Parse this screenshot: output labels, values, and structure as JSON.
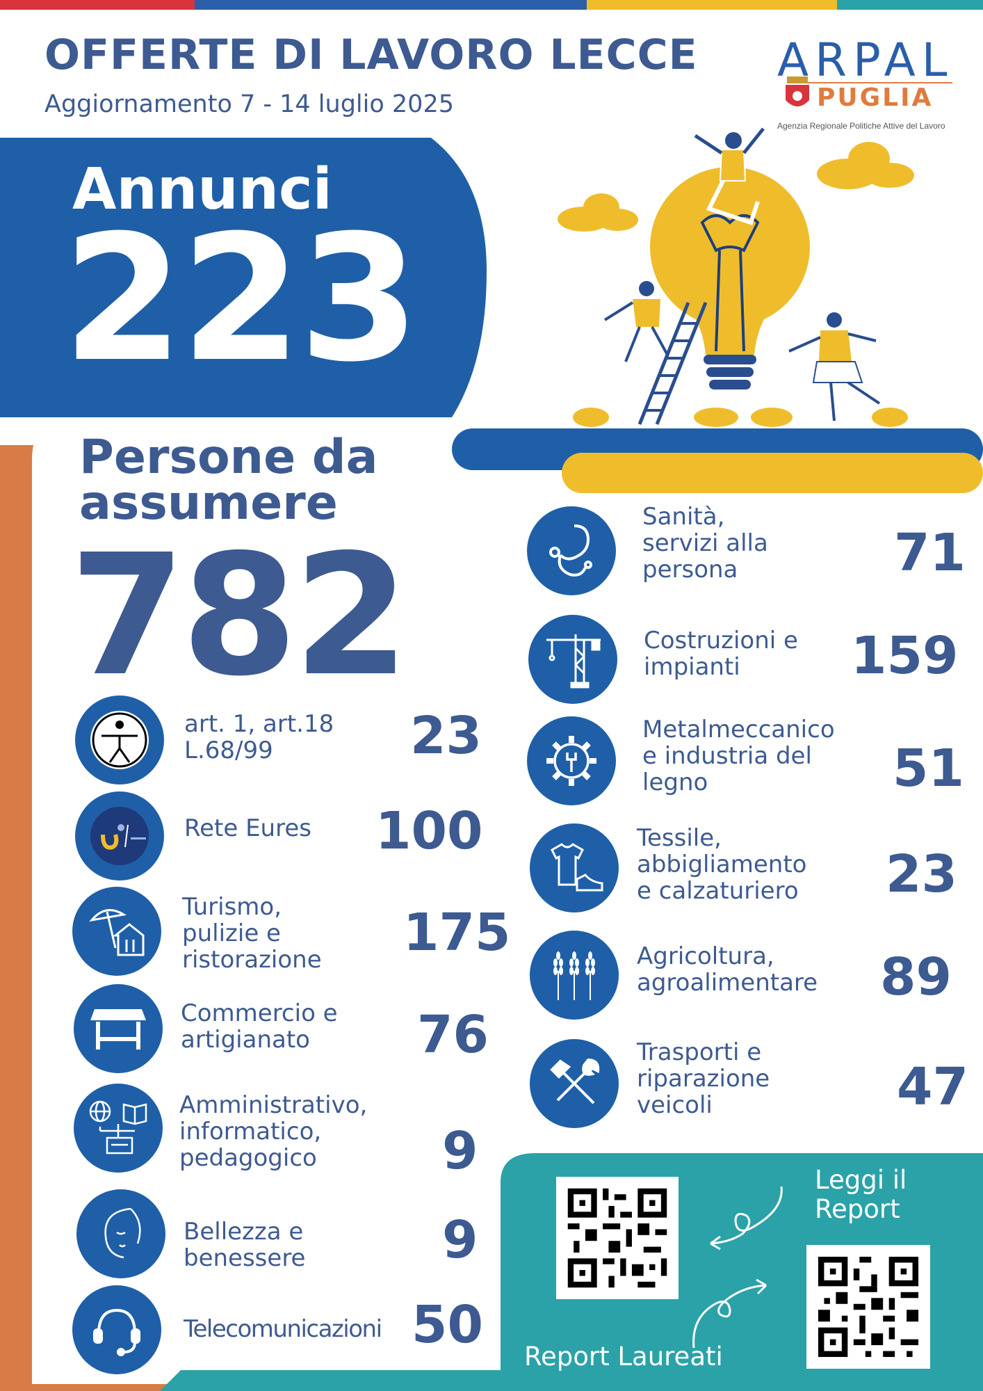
{
  "header": {
    "title": "OFFERTE DI LAVORO LECCE",
    "subtitle": "Aggiornamento  7 - 14 luglio 2025",
    "logo_top": "ARPAL",
    "logo_bottom": "PUGLIA",
    "logo_agency": "Agenzia Regionale Politiche Attive del Lavoro"
  },
  "annunci": {
    "label": "Annunci",
    "value": "223"
  },
  "persone": {
    "label": "Persone da assumere",
    "value": "782"
  },
  "left_categories": [
    {
      "label": "art. 1, art.18\nL.68/99",
      "value": "23",
      "icon": "accessibility-icon"
    },
    {
      "label": "Rete Eures",
      "value": "100",
      "icon": "eures-logo-icon"
    },
    {
      "label": "Turismo,\npulizie e\nristorazione",
      "value": "175",
      "icon": "beach-house-icon"
    },
    {
      "label": "Commercio e\nartigianato",
      "value": "76",
      "icon": "market-stall-icon"
    },
    {
      "label": "Amministrativo,\ninformatico,\npedagogico",
      "value": "9",
      "icon": "globe-book-id-icon"
    },
    {
      "label": "Bellezza e\nbenessere",
      "value": "9",
      "icon": "face-icon"
    },
    {
      "label": "Telecomunicazioni",
      "value": "50",
      "icon": "headset-icon"
    }
  ],
  "right_categories": [
    {
      "label": "Sanità,\nservizi alla\npersona",
      "value": "71",
      "icon": "stethoscope-icon"
    },
    {
      "label": "Costruzioni e\nimpianti",
      "value": "159",
      "icon": "crane-icon"
    },
    {
      "label": "Metalmeccanico\ne industria del\nlegno",
      "value": "51",
      "icon": "gear-wrench-icon"
    },
    {
      "label": "Tessile,\nabbigliamento\ne calzaturiero",
      "value": "23",
      "icon": "shirt-shoe-icon"
    },
    {
      "label": "Agricoltura,\nagroalimentare",
      "value": "89",
      "icon": "wheat-icon"
    },
    {
      "label": "Trasporti e\nriparazione\nveicoli",
      "value": "47",
      "icon": "hammer-wrench-icon"
    }
  ],
  "qr_section": {
    "report_label": "Leggi il\nReport",
    "laureati_label": "Report Laureati"
  },
  "colors": {
    "blue": "#1f5fa8",
    "navy_text": "#3d5a91",
    "orange": "#d97b45",
    "yellow": "#efbd2c",
    "teal": "#2aa2a8",
    "red": "#d9343c"
  }
}
